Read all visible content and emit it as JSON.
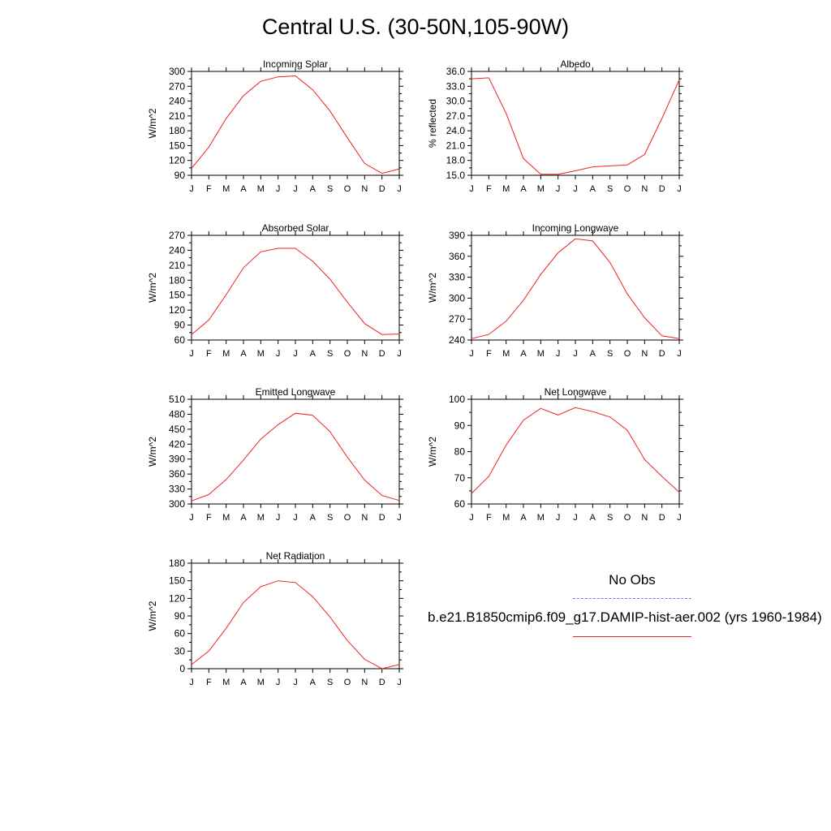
{
  "page_title": "Central U.S. (30-50N,105-90W)",
  "legend": {
    "no_obs_label": "No Obs",
    "model_label": "b.e21.B1850cmip6.f09_g17.DAMIP-hist-aer.002 (yrs 1960-1984)",
    "no_obs_color": "#7777ee",
    "model_color": "#ee2222"
  },
  "chart_data": [
    {
      "type": "line",
      "title": "Incoming Solar",
      "ylabel": "W/m^2",
      "categories": [
        "J",
        "F",
        "M",
        "A",
        "M",
        "J",
        "J",
        "A",
        "S",
        "O",
        "N",
        "D",
        "J"
      ],
      "ylim": [
        90,
        300
      ],
      "yticks": [
        "90",
        "120",
        "150",
        "180",
        "210",
        "240",
        "270",
        "300"
      ],
      "series": [
        {
          "values": [
            104,
            147,
            205,
            251,
            280,
            289,
            291,
            263,
            220,
            166,
            114,
            94,
            103
          ],
          "color": "#ee2222"
        }
      ]
    },
    {
      "type": "line",
      "title": "Albedo",
      "ylabel": "% reflected",
      "categories": [
        "J",
        "F",
        "M",
        "A",
        "M",
        "J",
        "J",
        "A",
        "S",
        "O",
        "N",
        "D",
        "J"
      ],
      "ylim": [
        15,
        36
      ],
      "yticks": [
        "15.0",
        "18.0",
        "21.0",
        "24.0",
        "27.0",
        "30.0",
        "33.0",
        "36.0"
      ],
      "series": [
        {
          "values": [
            34.5,
            34.7,
            27.5,
            18.4,
            15.2,
            15.2,
            15.9,
            16.7,
            16.9,
            17.1,
            19.2,
            26.5,
            34.3
          ],
          "color": "#ee2222"
        }
      ]
    },
    {
      "type": "line",
      "title": "Absorbed Solar",
      "ylabel": "W/m^2",
      "categories": [
        "J",
        "F",
        "M",
        "A",
        "M",
        "J",
        "J",
        "A",
        "S",
        "O",
        "N",
        "D",
        "J"
      ],
      "ylim": [
        60,
        270
      ],
      "yticks": [
        "60",
        "90",
        "120",
        "150",
        "180",
        "210",
        "240",
        "270"
      ],
      "series": [
        {
          "values": [
            71,
            100,
            151,
            205,
            237,
            244,
            244,
            218,
            182,
            136,
            93,
            71,
            72
          ],
          "color": "#ee2222"
        }
      ]
    },
    {
      "type": "line",
      "title": "Incoming Longwave",
      "ylabel": "W/m^2",
      "categories": [
        "J",
        "F",
        "M",
        "A",
        "M",
        "J",
        "J",
        "A",
        "S",
        "O",
        "N",
        "D",
        "J"
      ],
      "ylim": [
        240,
        390
      ],
      "yticks": [
        "240",
        "270",
        "300",
        "330",
        "360",
        "390"
      ],
      "series": [
        {
          "values": [
            242,
            248,
            267,
            297,
            334,
            365,
            385,
            382,
            351,
            306,
            272,
            246,
            242
          ],
          "color": "#ee2222"
        }
      ]
    },
    {
      "type": "line",
      "title": "Emitted Longwave",
      "ylabel": "W/m^2",
      "categories": [
        "J",
        "F",
        "M",
        "A",
        "M",
        "J",
        "J",
        "A",
        "S",
        "O",
        "N",
        "D",
        "J"
      ],
      "ylim": [
        300,
        510
      ],
      "yticks": [
        "300",
        "330",
        "360",
        "390",
        "420",
        "450",
        "480",
        "510"
      ],
      "series": [
        {
          "values": [
            306,
            319,
            349,
            388,
            430,
            459,
            482,
            478,
            445,
            394,
            348,
            317,
            307
          ],
          "color": "#ee2222"
        }
      ]
    },
    {
      "type": "line",
      "title": "Net Longwave",
      "ylabel": "W/m^2",
      "categories": [
        "J",
        "F",
        "M",
        "A",
        "M",
        "J",
        "J",
        "A",
        "S",
        "O",
        "N",
        "D",
        "J"
      ],
      "ylim": [
        60,
        100
      ],
      "yticks": [
        "60",
        "70",
        "80",
        "90",
        "100"
      ],
      "series": [
        {
          "values": [
            64,
            70.5,
            82.5,
            92,
            96.5,
            94,
            96.8,
            95.3,
            93.2,
            88.2,
            77,
            70.5,
            64.5
          ],
          "color": "#ee2222"
        }
      ]
    },
    {
      "type": "line",
      "title": "Net Radiation",
      "ylabel": "W/m^2",
      "categories": [
        "J",
        "F",
        "M",
        "A",
        "M",
        "J",
        "J",
        "A",
        "S",
        "O",
        "N",
        "D",
        "J"
      ],
      "ylim": [
        0,
        180
      ],
      "yticks": [
        "0",
        "30",
        "60",
        "90",
        "120",
        "150",
        "180"
      ],
      "series": [
        {
          "values": [
            7,
            30,
            69,
            113,
            140,
            150,
            147,
            123,
            88,
            48,
            16,
            0,
            7
          ],
          "color": "#ee2222"
        }
      ]
    }
  ]
}
